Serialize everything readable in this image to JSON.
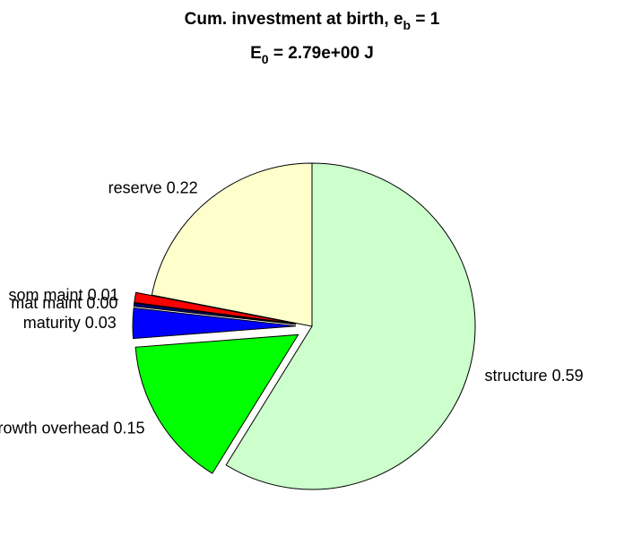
{
  "chart_data": {
    "type": "pie",
    "title": {
      "text": "Cum. investment at birth, e",
      "sub": "b",
      "after": " = 1"
    },
    "subtitle": {
      "text": "E",
      "sub": "0",
      "after": " = 2.79e+00 J"
    },
    "categories": [
      "structure",
      "growth overhead",
      "maturity",
      "mat maint",
      "som maint",
      "reserve"
    ],
    "values": [
      0.59,
      0.15,
      0.03,
      0.003,
      0.01,
      0.22
    ],
    "value_labels": [
      "0.59",
      "0.15",
      "0.03",
      "0.00",
      "0.01",
      "0.22"
    ],
    "colors": [
      "#ccffcc",
      "#00ff00",
      "#0000ff",
      "#000080",
      "#ff0000",
      "#ffffcc"
    ],
    "explode": [
      0,
      1,
      1,
      1,
      1,
      0
    ]
  }
}
